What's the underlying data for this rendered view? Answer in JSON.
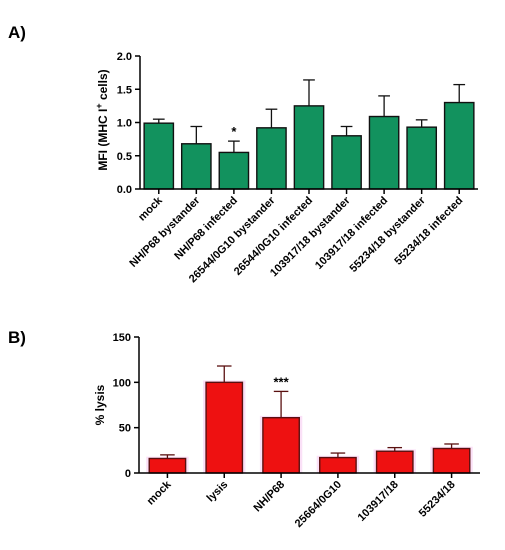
{
  "chart_data": [
    {
      "panel": "A)",
      "type": "bar",
      "ylabel_main": "MFI (MHC I",
      "ylabel_sup": "+",
      "ylabel_tail": " cells)",
      "ylim": [
        0,
        2.0
      ],
      "yticks": [
        "0.0",
        "0.5",
        "1.0",
        "1.5",
        "2.0"
      ],
      "ytick_values": [
        0,
        0.5,
        1.0,
        1.5,
        2.0
      ],
      "categories": [
        "mock",
        "NH/P68 bystander",
        "NH/P68 infected",
        "26544/0G10 bystander",
        "26544/0G10 infected",
        "103917/18 bystander",
        "103917/18 infected",
        "55234/18 bystander",
        "55234/18 infected"
      ],
      "values": [
        0.99,
        0.68,
        0.55,
        0.92,
        1.25,
        0.8,
        1.09,
        0.93,
        1.3
      ],
      "errors": [
        0.06,
        0.26,
        0.17,
        0.28,
        0.39,
        0.14,
        0.31,
        0.11,
        0.27
      ],
      "annotations": [
        {
          "category_index": 2,
          "text": "*"
        }
      ],
      "bar_color": "#12925e",
      "edge_color": "#111111"
    },
    {
      "panel": "B)",
      "type": "bar",
      "ylabel": "% lysis",
      "ylim": [
        0,
        150
      ],
      "yticks": [
        "0",
        "50",
        "100",
        "150"
      ],
      "ytick_values": [
        0,
        50,
        100,
        150
      ],
      "categories": [
        "mock",
        "lysis",
        "NH/P68",
        "25664/0G10",
        "103917/18",
        "55234/18"
      ],
      "values": [
        16,
        100,
        61,
        17,
        24,
        27
      ],
      "errors": [
        4,
        18,
        29,
        5,
        4,
        5
      ],
      "annotations": [
        {
          "category_index": 2,
          "text": "***"
        }
      ],
      "bar_color": "#ee1111",
      "edge_color": "#5a1010",
      "glow_color": "#f6c6f0"
    }
  ]
}
